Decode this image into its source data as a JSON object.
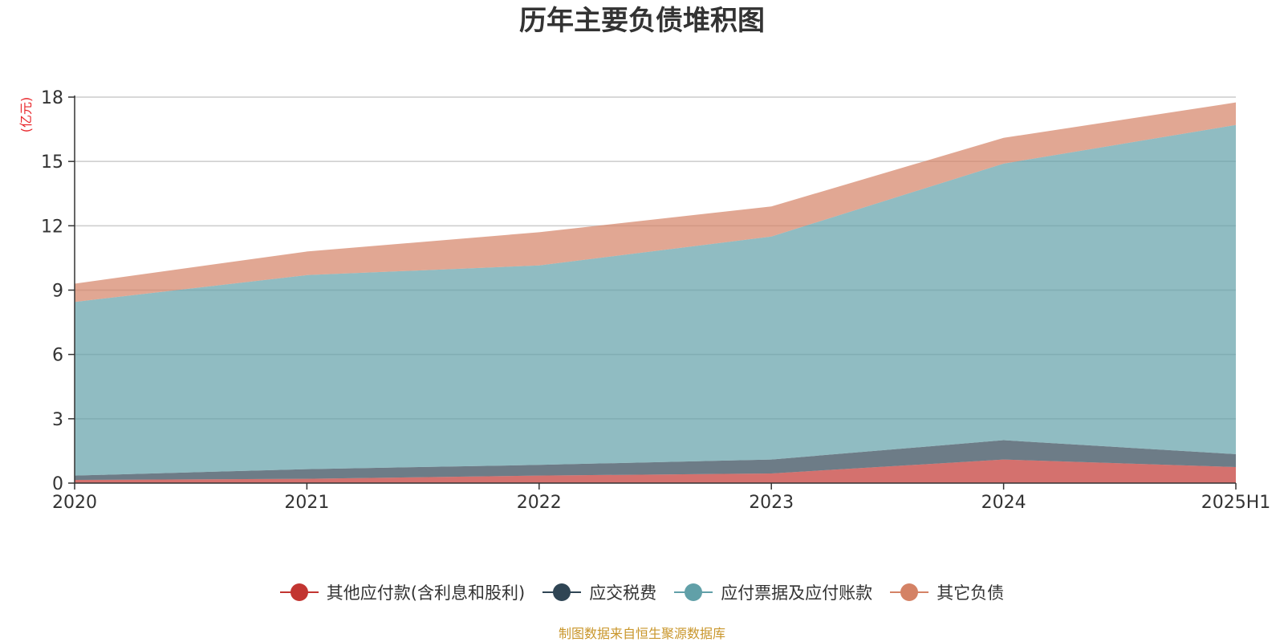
{
  "chart_data": {
    "type": "area",
    "stacked": true,
    "title": "历年主要负债堆积图",
    "ylabel": "(亿元)",
    "xlabel": "",
    "categories": [
      "2020",
      "2021",
      "2022",
      "2023",
      "2024",
      "2025H1"
    ],
    "ylim": [
      0,
      18
    ],
    "yticks": [
      0,
      3,
      6,
      9,
      12,
      15,
      18
    ],
    "grid": true,
    "legend_position": "bottom",
    "series": [
      {
        "name": "其他应付款(含利息和股利)",
        "color": "#c23531",
        "values": [
          0.15,
          0.2,
          0.35,
          0.45,
          1.1,
          0.75
        ]
      },
      {
        "name": "应交税费",
        "color": "#2f4554",
        "values": [
          0.2,
          0.45,
          0.5,
          0.65,
          0.9,
          0.6
        ]
      },
      {
        "name": "应付票据及应付账款",
        "color": "#61a0a8",
        "values": [
          8.1,
          9.05,
          9.3,
          10.4,
          12.9,
          15.35
        ]
      },
      {
        "name": "其它负债",
        "color": "#d48265",
        "values": [
          0.85,
          1.1,
          1.55,
          1.4,
          1.2,
          1.05
        ]
      }
    ]
  },
  "footer": {
    "source": "制图数据来自恒生聚源数据库"
  }
}
